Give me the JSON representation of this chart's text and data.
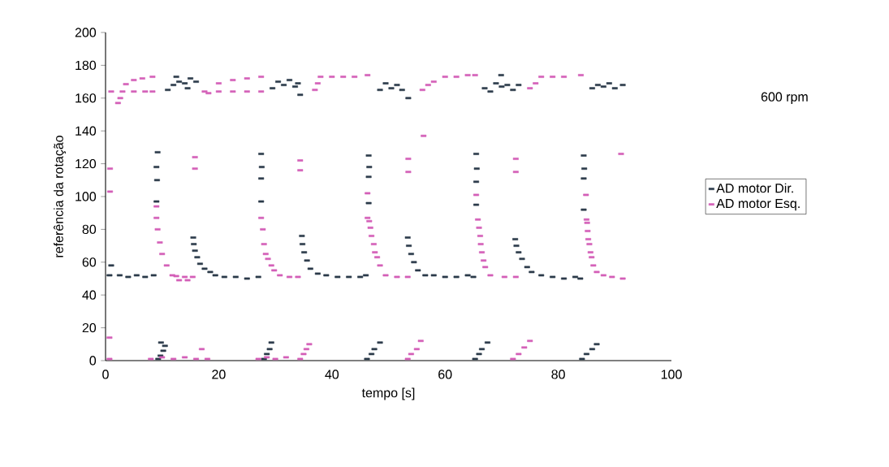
{
  "chart_data": {
    "type": "scatter",
    "xlabel": "tempo [s]",
    "ylabel": "referência da rotação",
    "annotations": [
      "600 rpm"
    ],
    "xlim": [
      0,
      100
    ],
    "ylim": [
      0,
      200
    ],
    "xticks": [
      0,
      20,
      40,
      60,
      80,
      100
    ],
    "yticks": [
      0,
      20,
      40,
      60,
      80,
      100,
      120,
      140,
      160,
      180,
      200
    ],
    "grid": false,
    "legend": "right",
    "marker": "square",
    "series": [
      {
        "name": "AD motor Dir.",
        "color": "#2b3a4a",
        "x": [
          0.7,
          2.5,
          4,
          5.5,
          7,
          8.5,
          1,
          9,
          9.1,
          9,
          9.2,
          9.3,
          9.7,
          10.2,
          10.5,
          9.8,
          11,
          12,
          13,
          14,
          15,
          16,
          12.5,
          14.5,
          15.5,
          15.6,
          15.8,
          16.2,
          16.7,
          17.5,
          18.5,
          19.4,
          21,
          23,
          25,
          27,
          27.5,
          27.5,
          27.6,
          27.5,
          28,
          28.5,
          29,
          29.3,
          29.5,
          30.5,
          31.5,
          32.5,
          33.5,
          34.4,
          34,
          34.7,
          34.8,
          35.1,
          35.6,
          36.2,
          37.5,
          39,
          41,
          43,
          45,
          46,
          46.5,
          46.5,
          46.6,
          46.5,
          46.2,
          47,
          47.5,
          48.5,
          48.5,
          49.5,
          50.5,
          51.5,
          52.4,
          53.5,
          53.4,
          53.6,
          54,
          54.5,
          55.2,
          56.5,
          58,
          60,
          62,
          64,
          65,
          65.5,
          65.5,
          65.6,
          65.5,
          65.3,
          66,
          66.5,
          67.5,
          67,
          68,
          69,
          70,
          71,
          72,
          73,
          69.9,
          72.4,
          72.6,
          73,
          73.6,
          74.5,
          75.3,
          77,
          79,
          81,
          83,
          83.9,
          84.5,
          84.5,
          84.6,
          84.5,
          84.2,
          85,
          86,
          86.8,
          86,
          87,
          88,
          89,
          90,
          91.4
        ],
        "values": [
          52,
          52,
          51,
          52,
          51,
          52,
          58,
          97,
          110,
          118,
          127,
          1,
          3,
          6,
          9,
          11,
          165,
          168,
          170,
          169,
          172,
          170,
          173,
          166,
          75,
          71,
          67,
          63,
          59,
          56,
          54,
          52,
          51,
          51,
          50,
          51,
          97,
          111,
          118,
          126,
          1,
          4,
          7,
          11,
          166,
          170,
          168,
          171,
          167,
          162,
          169,
          76,
          71,
          66,
          61,
          56,
          53,
          52,
          51,
          51,
          51,
          52,
          96,
          112,
          118,
          125,
          1,
          4,
          7,
          11,
          165,
          169,
          166,
          168,
          165,
          160,
          75,
          70,
          65,
          60,
          55,
          52,
          52,
          51,
          51,
          52,
          51,
          95,
          109,
          117,
          126,
          1,
          4,
          7,
          11,
          166,
          164,
          169,
          167,
          168,
          165,
          168,
          174,
          74,
          70,
          66,
          62,
          57,
          54,
          52,
          51,
          50,
          51,
          50,
          92,
          111,
          117,
          125,
          1,
          4,
          7,
          10,
          166,
          168,
          167,
          169,
          166,
          168
        ]
      },
      {
        "name": "AD motor Esq.",
        "color": "#d45fb8",
        "x": [
          0.7,
          0.7,
          0.8,
          0.8,
          1,
          3,
          5,
          7,
          8.3,
          8.3,
          6.5,
          5,
          3.6,
          2.6,
          2.2,
          8,
          10,
          12,
          14,
          16,
          18,
          17,
          15.4,
          14,
          12.5,
          11.8,
          13,
          14.5,
          10.8,
          10,
          9.6,
          9.2,
          9,
          9,
          17.5,
          20,
          22.5,
          25,
          27.5,
          27.5,
          25,
          22.5,
          20,
          18.2,
          15.8,
          15.8,
          27,
          28.5,
          30,
          31.9,
          34,
          32.5,
          30.8,
          29.8,
          29.3,
          28.7,
          28.3,
          28,
          27.8,
          27.5,
          34.4,
          34.4,
          38,
          40,
          42,
          44,
          46.3,
          37,
          37.5,
          34.4,
          35,
          35.5,
          36,
          53.4,
          51.5,
          49.5,
          48.5,
          48,
          47.6,
          47.4,
          47,
          46.8,
          46.6,
          46.3,
          46.3,
          53.5,
          53.5,
          56.2,
          60,
          62,
          64,
          65.3,
          58,
          56,
          57,
          53.4,
          54,
          55,
          55.7,
          72.5,
          70.5,
          68,
          67.1,
          66.8,
          66.5,
          66.3,
          66.2,
          66,
          65.8,
          65.5,
          72.5,
          72.5,
          77,
          79,
          81,
          84,
          75,
          76,
          72,
          73,
          74,
          75,
          91.4,
          89.5,
          88,
          86.8,
          86.2,
          85.9,
          85.7,
          85.5,
          85.3,
          85.2,
          85.1,
          85,
          84.9,
          91.1
        ],
        "values": [
          1,
          14,
          103,
          117,
          164,
          164,
          164,
          164,
          164,
          173,
          172,
          171,
          168.5,
          160,
          157,
          1,
          2,
          1,
          2,
          1,
          1,
          7,
          51,
          51,
          51.5,
          52,
          49,
          49,
          58,
          65,
          72,
          80,
          87,
          94,
          164,
          164,
          164,
          164,
          164,
          173,
          172,
          171,
          169,
          163,
          117,
          124,
          1,
          2,
          1,
          2,
          51,
          51,
          52,
          55,
          58,
          62,
          65,
          71,
          80,
          87,
          116,
          122,
          173,
          173,
          173,
          173,
          174,
          165,
          169,
          1,
          4,
          7,
          10,
          51,
          51,
          52,
          58,
          63,
          66,
          71,
          76,
          81,
          85,
          87,
          102,
          115,
          123,
          137,
          173,
          173,
          174,
          174,
          170,
          165,
          168,
          1,
          4,
          7,
          12,
          51,
          51,
          52,
          57,
          61,
          66,
          71,
          76,
          81,
          86,
          101,
          115,
          123,
          173,
          173,
          173,
          174,
          166,
          169,
          1,
          4,
          8,
          12,
          50,
          51,
          52,
          54,
          58,
          63,
          66,
          71,
          74,
          79,
          84,
          86,
          101,
          126
        ]
      }
    ]
  }
}
